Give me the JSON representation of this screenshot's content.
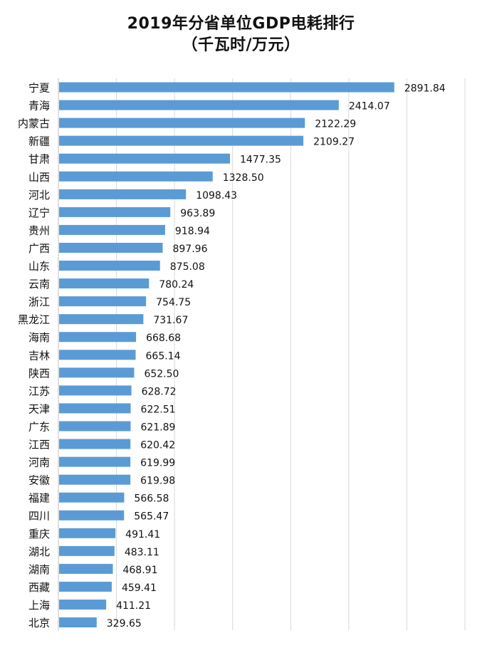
{
  "chart_data": {
    "type": "bar",
    "orientation": "horizontal",
    "title": "2019年分省单位GDP电耗排行",
    "subtitle": "（千瓦时/万元）",
    "categories": [
      "宁夏",
      "青海",
      "内蒙古",
      "新疆",
      "甘肃",
      "山西",
      "河北",
      "辽宁",
      "贵州",
      "广西",
      "山东",
      "云南",
      "浙江",
      "黑龙江",
      "海南",
      "吉林",
      "陕西",
      "江苏",
      "天津",
      "广东",
      "江西",
      "河南",
      "安徽",
      "福建",
      "四川",
      "重庆",
      "湖北",
      "湖南",
      "西藏",
      "上海",
      "北京"
    ],
    "values": [
      2891.84,
      2414.07,
      2122.29,
      2109.27,
      1477.35,
      1328.5,
      1098.43,
      963.89,
      918.94,
      897.96,
      875.08,
      780.24,
      754.75,
      731.67,
      668.68,
      665.14,
      652.5,
      628.72,
      622.51,
      621.89,
      620.42,
      619.99,
      619.98,
      566.58,
      565.47,
      491.41,
      483.11,
      468.91,
      459.41,
      411.21,
      329.65
    ],
    "value_labels": [
      "2891.84",
      "2414.07",
      "2122.29",
      "2109.27",
      "1477.35",
      "1328.50",
      "1098.43",
      "963.89",
      "918.94",
      "897.96",
      "875.08",
      "780.24",
      "754.75",
      "731.67",
      "668.68",
      "665.14",
      "652.50",
      "628.72",
      "622.51",
      "621.89",
      "620.42",
      "619.99",
      "619.98",
      "566.58",
      "565.47",
      "491.41",
      "483.11",
      "468.91",
      "459.41",
      "411.21",
      "329.65"
    ],
    "xlim": [
      0,
      3500
    ],
    "grid": true,
    "xlabel": "",
    "ylabel": ""
  },
  "colors": {
    "bar": "#5b9bd5",
    "grid": "#d9d9d9",
    "axis": "#bfbfbf",
    "text": "#111111"
  }
}
